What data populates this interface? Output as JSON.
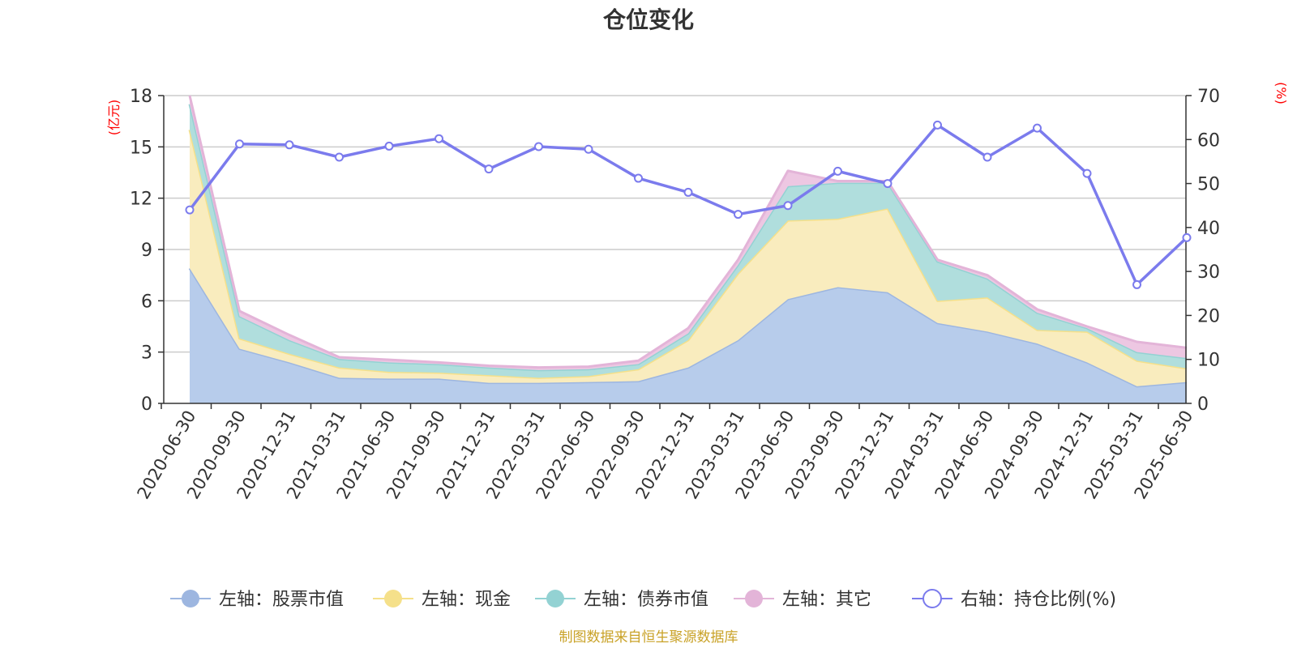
{
  "chart_data": {
    "type": "area",
    "title": "仓位变化",
    "y_left_unit": "(亿元)",
    "y_right_unit": "(%)",
    "y_left_lim": [
      0,
      18
    ],
    "y_left_ticks": [
      "0",
      "3",
      "6",
      "9",
      "12",
      "15",
      "18"
    ],
    "y_right_lim": [
      0,
      70
    ],
    "y_right_ticks": [
      "0",
      "10",
      "20",
      "30",
      "40",
      "50",
      "60",
      "70"
    ],
    "grid": true,
    "legend_position": "bottom",
    "categories": [
      "2020-06-30",
      "2020-09-30",
      "2020-12-31",
      "2021-03-31",
      "2021-06-30",
      "2021-09-30",
      "2021-12-31",
      "2022-03-31",
      "2022-06-30",
      "2022-09-30",
      "2022-12-31",
      "2023-03-31",
      "2023-06-30",
      "2023-09-30",
      "2023-12-31",
      "2024-03-31",
      "2024-06-30",
      "2024-09-30",
      "2024-12-31",
      "2025-03-31",
      "2025-06-30"
    ],
    "stacked_series": [
      {
        "name": "左轴：股票市值",
        "axis": "left",
        "color": "#9db6e0",
        "fill": "#b7cceb",
        "values": [
          7.9,
          3.2,
          2.4,
          1.5,
          1.45,
          1.45,
          1.2,
          1.2,
          1.25,
          1.3,
          2.1,
          3.7,
          6.1,
          6.8,
          6.5,
          4.7,
          4.2,
          3.5,
          2.4,
          1.0,
          1.25
        ]
      },
      {
        "name": "左轴：现金",
        "axis": "left",
        "color": "#f5e08a",
        "fill": "#f9ecbe",
        "values": [
          8.1,
          0.6,
          0.5,
          0.6,
          0.4,
          0.35,
          0.45,
          0.3,
          0.35,
          0.7,
          1.6,
          3.9,
          4.6,
          4.0,
          4.9,
          1.3,
          2.0,
          0.8,
          1.8,
          1.5,
          0.8
        ]
      },
      {
        "name": "左轴：债券市值",
        "axis": "left",
        "color": "#93d2d3",
        "fill": "#b0dedd",
        "values": [
          1.5,
          1.3,
          0.8,
          0.5,
          0.55,
          0.5,
          0.45,
          0.45,
          0.4,
          0.3,
          0.4,
          0.5,
          2.0,
          2.1,
          1.5,
          2.3,
          1.1,
          1.0,
          0.2,
          0.5,
          0.6
        ]
      },
      {
        "name": "左轴：其它",
        "axis": "left",
        "color": "#e3b4d8",
        "fill": "#edc7e2",
        "values": [
          0.5,
          0.3,
          0.3,
          0.1,
          0.15,
          0.1,
          0.1,
          0.15,
          0.15,
          0.2,
          0.3,
          0.3,
          0.9,
          0.1,
          0.1,
          0.1,
          0.2,
          0.2,
          0.1,
          0.6,
          0.6
        ]
      }
    ],
    "line_series": {
      "name": "右轴：持仓比例(%)",
      "axis": "right",
      "color": "#7b7bed",
      "values": [
        44,
        59,
        58.8,
        56,
        58.5,
        60.2,
        53.3,
        58.4,
        57.8,
        51.2,
        48,
        43,
        45,
        52.8,
        50,
        63.3,
        56,
        62.6,
        52.3,
        27,
        37.7
      ]
    },
    "source": "制图数据来自恒生聚源数据库"
  }
}
